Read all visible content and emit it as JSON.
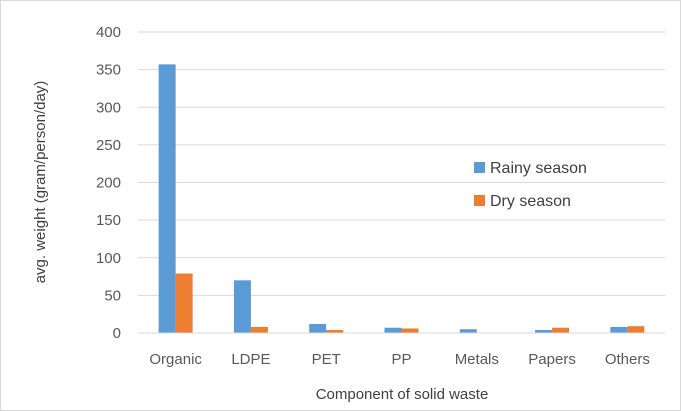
{
  "chart_data": {
    "type": "bar",
    "categories": [
      "Organic",
      "LDPE",
      "PET",
      "PP",
      "Metals",
      "Papers",
      "Others"
    ],
    "series": [
      {
        "name": "Rainy season",
        "color": "#5B9BD5",
        "values": [
          357,
          70,
          12,
          7,
          5,
          4,
          8
        ]
      },
      {
        "name": "Dry season",
        "color": "#ED7D31",
        "values": [
          79,
          8,
          4,
          6,
          0,
          7,
          9
        ]
      }
    ],
    "title": "",
    "xlabel": "Component of solid waste",
    "ylabel": "avg. weight (gram/person/day)",
    "ylim": [
      0,
      400
    ],
    "yticks": [
      "0",
      "50",
      "100",
      "150",
      "200",
      "250",
      "300",
      "350",
      "400"
    ],
    "grid": true,
    "legend_position": "right"
  }
}
